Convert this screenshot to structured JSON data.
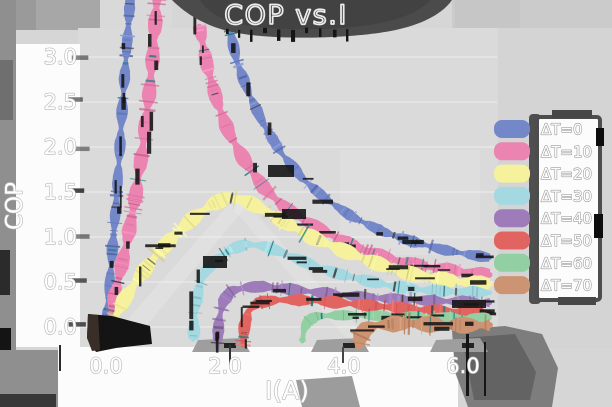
{
  "title": "COP vs.I",
  "x_axis": {
    "label": "I(A)",
    "ticks": [
      "0.0",
      "2.0",
      "4.0",
      "6.0"
    ],
    "tick_values": [
      0,
      2,
      4,
      6
    ]
  },
  "y_axis": {
    "label": "COP",
    "ticks": [
      "0.0",
      "0.5",
      "1.0",
      "1.5",
      "2.0",
      "2.5",
      "3.0"
    ],
    "tick_values": [
      0,
      0.5,
      1,
      1.5,
      2,
      2.5,
      3
    ]
  },
  "legend": {
    "entries": [
      {
        "label": "ΔT=0",
        "color": "#7487c8"
      },
      {
        "label": "ΔT=10",
        "color": "#ec84b2"
      },
      {
        "label": "ΔT=20",
        "color": "#f6f19d"
      },
      {
        "label": "ΔT=30",
        "color": "#a5d9e2"
      },
      {
        "label": "ΔT=40",
        "color": "#9e7cba"
      },
      {
        "label": "ΔT=50",
        "color": "#e26460"
      },
      {
        "label": "ΔT=60",
        "color": "#92cfa2"
      },
      {
        "label": "ΔT=70",
        "color": "#cc9472"
      }
    ]
  },
  "colors": {
    "figure_bg": "#d6d6d6",
    "plot_bg": "#dadada",
    "label_strip": "#fcfcfc",
    "shadow_dark": "#4b4b4b",
    "shadow_mid": "#8f8f8f",
    "noise_black": "#151515",
    "legend_box_bg": "#fcfcfc",
    "legend_box_border": "#4d4d4d"
  },
  "chart_data": {
    "type": "line",
    "title": "COP vs.I",
    "xlabel": "I(A)",
    "ylabel": "COP",
    "xlim": [
      -0.3,
      6.65
    ],
    "ylim": [
      -0.25,
      3.65
    ],
    "x_ticks": [
      0,
      2,
      4,
      6
    ],
    "y_ticks": [
      0,
      0.5,
      1,
      1.5,
      2,
      2.5,
      3
    ],
    "grid": false,
    "legend_position": "right",
    "style": "sketchy-crayon-bands",
    "series": [
      {
        "name": "ΔT=0",
        "color": "#7487c8",
        "band_width": 9,
        "segments": [
          [
            [
              0.05,
              0
            ],
            [
              0.12,
              0.55
            ],
            [
              0.2,
              1.2
            ],
            [
              0.27,
              1.85
            ],
            [
              0.33,
              2.5
            ],
            [
              0.4,
              3.1
            ],
            [
              0.46,
              3.68
            ]
          ],
          [
            [
              2.12,
              3.34
            ],
            [
              2.25,
              2.95
            ],
            [
              2.45,
              2.6
            ],
            [
              2.7,
              2.25
            ],
            [
              3.0,
              1.93
            ],
            [
              3.35,
              1.65
            ],
            [
              3.75,
              1.42
            ],
            [
              4.2,
              1.22
            ],
            [
              4.7,
              1.06
            ],
            [
              5.2,
              0.95
            ],
            [
              5.7,
              0.86
            ],
            [
              6.2,
              0.8
            ],
            [
              6.5,
              0.77
            ]
          ]
        ]
      },
      {
        "name": "ΔT=10",
        "color": "#ec84b2",
        "band_width": 12,
        "segments": [
          [
            [
              0.1,
              0
            ],
            [
              0.25,
              0.5
            ],
            [
              0.42,
              1.0
            ],
            [
              0.56,
              1.5
            ],
            [
              0.67,
              2.0
            ],
            [
              0.77,
              2.55
            ],
            [
              0.85,
              3.1
            ],
            [
              0.91,
              3.68
            ]
          ],
          [
            [
              1.62,
              3.34
            ],
            [
              1.75,
              2.9
            ],
            [
              1.92,
              2.5
            ],
            [
              2.12,
              2.15
            ],
            [
              2.38,
              1.85
            ],
            [
              2.7,
              1.55
            ],
            [
              3.1,
              1.3
            ],
            [
              3.6,
              1.1
            ],
            [
              4.1,
              0.93
            ],
            [
              4.6,
              0.8
            ],
            [
              5.1,
              0.71
            ],
            [
              5.7,
              0.64
            ],
            [
              6.2,
              0.6
            ],
            [
              6.5,
              0.58
            ]
          ]
        ]
      },
      {
        "name": "ΔT=20",
        "color": "#f6f19d",
        "band_width": 13,
        "segments": [
          [
            [
              0.12,
              0
            ],
            [
              0.35,
              0.3
            ],
            [
              0.6,
              0.55
            ],
            [
              0.9,
              0.8
            ],
            [
              1.2,
              1.02
            ],
            [
              1.5,
              1.2
            ],
            [
              1.8,
              1.35
            ],
            [
              2.1,
              1.44
            ],
            [
              2.4,
              1.4
            ],
            [
              2.7,
              1.3
            ],
            [
              3.1,
              1.15
            ],
            [
              3.5,
              1.0
            ],
            [
              4.0,
              0.86
            ],
            [
              4.5,
              0.73
            ],
            [
              5.0,
              0.62
            ],
            [
              5.5,
              0.55
            ],
            [
              6.0,
              0.5
            ],
            [
              6.5,
              0.48
            ]
          ]
        ]
      },
      {
        "name": "ΔT=30",
        "color": "#a5d9e2",
        "band_width": 10,
        "segments": [
          [
            [
              1.52,
              -0.14
            ],
            [
              1.55,
              0.2
            ],
            [
              1.62,
              0.45
            ],
            [
              1.72,
              0.62
            ],
            [
              1.9,
              0.75
            ],
            [
              2.15,
              0.86
            ],
            [
              2.4,
              0.92
            ],
            [
              2.7,
              0.9
            ],
            [
              3.0,
              0.83
            ],
            [
              3.4,
              0.72
            ],
            [
              3.9,
              0.6
            ],
            [
              4.4,
              0.52
            ],
            [
              4.9,
              0.45
            ],
            [
              5.4,
              0.41
            ],
            [
              6.0,
              0.39
            ],
            [
              6.5,
              0.38
            ]
          ]
        ]
      },
      {
        "name": "ΔT=40",
        "color": "#9e7cba",
        "band_width": 10,
        "segments": [
          [
            [
              1.92,
              -0.22
            ],
            [
              1.95,
              0.08
            ],
            [
              2.02,
              0.28
            ],
            [
              2.15,
              0.4
            ],
            [
              2.4,
              0.44
            ],
            [
              2.7,
              0.45
            ],
            [
              3.0,
              0.43
            ],
            [
              3.4,
              0.4
            ],
            [
              3.9,
              0.36
            ],
            [
              4.4,
              0.33
            ],
            [
              4.9,
              0.31
            ],
            [
              5.5,
              0.29
            ],
            [
              6.1,
              0.28
            ],
            [
              6.5,
              0.27
            ]
          ]
        ]
      },
      {
        "name": "ΔT=50",
        "color": "#e26460",
        "band_width": 10,
        "segments": [
          [
            [
              2.35,
              -0.2
            ],
            [
              2.38,
              0.02
            ],
            [
              2.45,
              0.18
            ],
            [
              2.6,
              0.27
            ],
            [
              2.9,
              0.3
            ],
            [
              3.3,
              0.3
            ],
            [
              3.8,
              0.28
            ],
            [
              4.3,
              0.25
            ],
            [
              4.8,
              0.22
            ],
            [
              5.4,
              0.19
            ],
            [
              6.0,
              0.17
            ],
            [
              6.5,
              0.16
            ]
          ]
        ]
      },
      {
        "name": "ΔT=60",
        "color": "#92cfa2",
        "band_width": 9,
        "segments": [
          [
            [
              3.35,
              -0.16
            ],
            [
              3.38,
              -0.02
            ],
            [
              3.45,
              0.07
            ],
            [
              3.6,
              0.12
            ],
            [
              3.9,
              0.13
            ],
            [
              4.4,
              0.13
            ],
            [
              4.9,
              0.12
            ],
            [
              5.5,
              0.11
            ],
            [
              6.1,
              0.1
            ],
            [
              6.5,
              0.1
            ]
          ]
        ]
      },
      {
        "name": "ΔT=70",
        "color": "#cc9472",
        "band_width": 14,
        "segments": [
          [
            [
              4.3,
              -0.22
            ],
            [
              4.33,
              -0.1
            ],
            [
              4.42,
              -0.02
            ],
            [
              4.6,
              0.02
            ],
            [
              5.0,
              0.04
            ],
            [
              5.5,
              0.03
            ],
            [
              6.0,
              0.02
            ],
            [
              6.5,
              0.02
            ]
          ]
        ]
      }
    ]
  }
}
